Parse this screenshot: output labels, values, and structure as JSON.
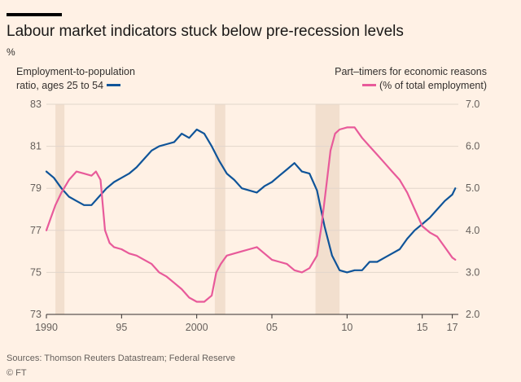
{
  "header": {
    "title": "Labour market indicators stuck below pre-recession levels",
    "unit": "%"
  },
  "legend": {
    "left_line1": "Employment-to-population",
    "left_line2": "ratio, ages 25 to 54",
    "right_line1": "Part–timers for economic reasons",
    "right_line2": "(% of total employment)"
  },
  "footer": {
    "source": "Sources: Thomson Reuters Datastream; Federal Reserve",
    "credit": "© FT"
  },
  "colors": {
    "employment": "#0f5499",
    "part_timers": "#e85a9a",
    "recession": "#f2dfce",
    "background": "#fff1e5",
    "grid": "#e2d6cb",
    "axis": "#33302e"
  },
  "chart_data": {
    "type": "line",
    "grid": true,
    "x_ticks": [
      {
        "x": 1990,
        "label": "1990"
      },
      {
        "x": 1995,
        "label": "95"
      },
      {
        "x": 2000,
        "label": "2000"
      },
      {
        "x": 2005,
        "label": "05"
      },
      {
        "x": 2010,
        "label": "10"
      },
      {
        "x": 2015,
        "label": "15"
      },
      {
        "x": 2017,
        "label": "17"
      }
    ],
    "xlim": [
      1990,
      2017.4
    ],
    "y_left": {
      "lim": [
        73,
        83
      ],
      "ticks": [
        "73",
        "75",
        "77",
        "79",
        "81",
        "83"
      ]
    },
    "y_right": {
      "lim": [
        2.0,
        7.0
      ],
      "ticks": [
        "2.0",
        "3.0",
        "4.0",
        "5.0",
        "6.0",
        "7.0"
      ]
    },
    "recessions": [
      [
        1990.6,
        1991.2
      ],
      [
        2001.2,
        2001.9
      ],
      [
        2007.9,
        2009.5
      ]
    ],
    "series": [
      {
        "name": "Employment-to-population ratio, ages 25 to 54",
        "axis": "left",
        "x": [
          1990,
          1990.5,
          1991,
          1991.5,
          1992,
          1992.5,
          1993,
          1993.5,
          1994,
          1994.5,
          1995,
          1995.5,
          1996,
          1996.5,
          1997,
          1997.5,
          1998,
          1998.5,
          1999,
          1999.5,
          2000,
          2000.5,
          2001,
          2001.5,
          2002,
          2002.5,
          2003,
          2003.5,
          2004,
          2004.5,
          2005,
          2005.5,
          2006,
          2006.5,
          2007,
          2007.5,
          2008,
          2008.5,
          2009,
          2009.5,
          2010,
          2010.5,
          2011,
          2011.5,
          2012,
          2012.5,
          2013,
          2013.5,
          2014,
          2014.5,
          2015,
          2015.5,
          2016,
          2016.5,
          2017,
          2017.2
        ],
        "values": [
          79.8,
          79.5,
          79.0,
          78.6,
          78.4,
          78.2,
          78.2,
          78.6,
          79.0,
          79.3,
          79.5,
          79.7,
          80.0,
          80.4,
          80.8,
          81.0,
          81.1,
          81.2,
          81.6,
          81.4,
          81.8,
          81.6,
          81.0,
          80.3,
          79.7,
          79.4,
          79.0,
          78.9,
          78.8,
          79.1,
          79.3,
          79.6,
          79.9,
          80.2,
          79.8,
          79.7,
          78.9,
          77.2,
          75.8,
          75.1,
          75.0,
          75.1,
          75.1,
          75.5,
          75.5,
          75.7,
          75.9,
          76.1,
          76.6,
          77.0,
          77.3,
          77.6,
          78.0,
          78.4,
          78.7,
          79.0
        ]
      },
      {
        "name": "Part–timers for economic reasons",
        "axis": "right",
        "x": [
          1990,
          1990.3,
          1990.6,
          1991,
          1991.5,
          1992,
          1992.5,
          1993,
          1993.3,
          1993.6,
          1993.9,
          1994.2,
          1994.5,
          1995,
          1995.5,
          1996,
          1996.5,
          1997,
          1997.5,
          1998,
          1998.5,
          1999,
          1999.5,
          2000,
          2000.5,
          2001,
          2001.3,
          2001.6,
          2001.8,
          2002,
          2002.5,
          2003,
          2003.5,
          2004,
          2004.5,
          2005,
          2005.5,
          2006,
          2006.5,
          2007,
          2007.5,
          2008,
          2008.3,
          2008.6,
          2008.9,
          2009.2,
          2009.5,
          2010,
          2010.5,
          2011,
          2011.5,
          2012,
          2012.5,
          2013,
          2013.5,
          2014,
          2014.5,
          2015,
          2015.5,
          2016,
          2016.5,
          2017,
          2017.2
        ],
        "values": [
          4.0,
          4.3,
          4.6,
          4.9,
          5.2,
          5.4,
          5.35,
          5.3,
          5.4,
          5.2,
          4.0,
          3.7,
          3.6,
          3.55,
          3.45,
          3.4,
          3.3,
          3.2,
          3.0,
          2.9,
          2.75,
          2.6,
          2.4,
          2.3,
          2.3,
          2.45,
          3.0,
          3.2,
          3.3,
          3.4,
          3.45,
          3.5,
          3.55,
          3.6,
          3.45,
          3.3,
          3.25,
          3.2,
          3.05,
          3.0,
          3.1,
          3.4,
          4.1,
          5.0,
          5.9,
          6.3,
          6.4,
          6.45,
          6.45,
          6.2,
          6.0,
          5.8,
          5.6,
          5.4,
          5.2,
          4.9,
          4.5,
          4.1,
          3.95,
          3.85,
          3.6,
          3.35,
          3.3
        ]
      }
    ]
  }
}
